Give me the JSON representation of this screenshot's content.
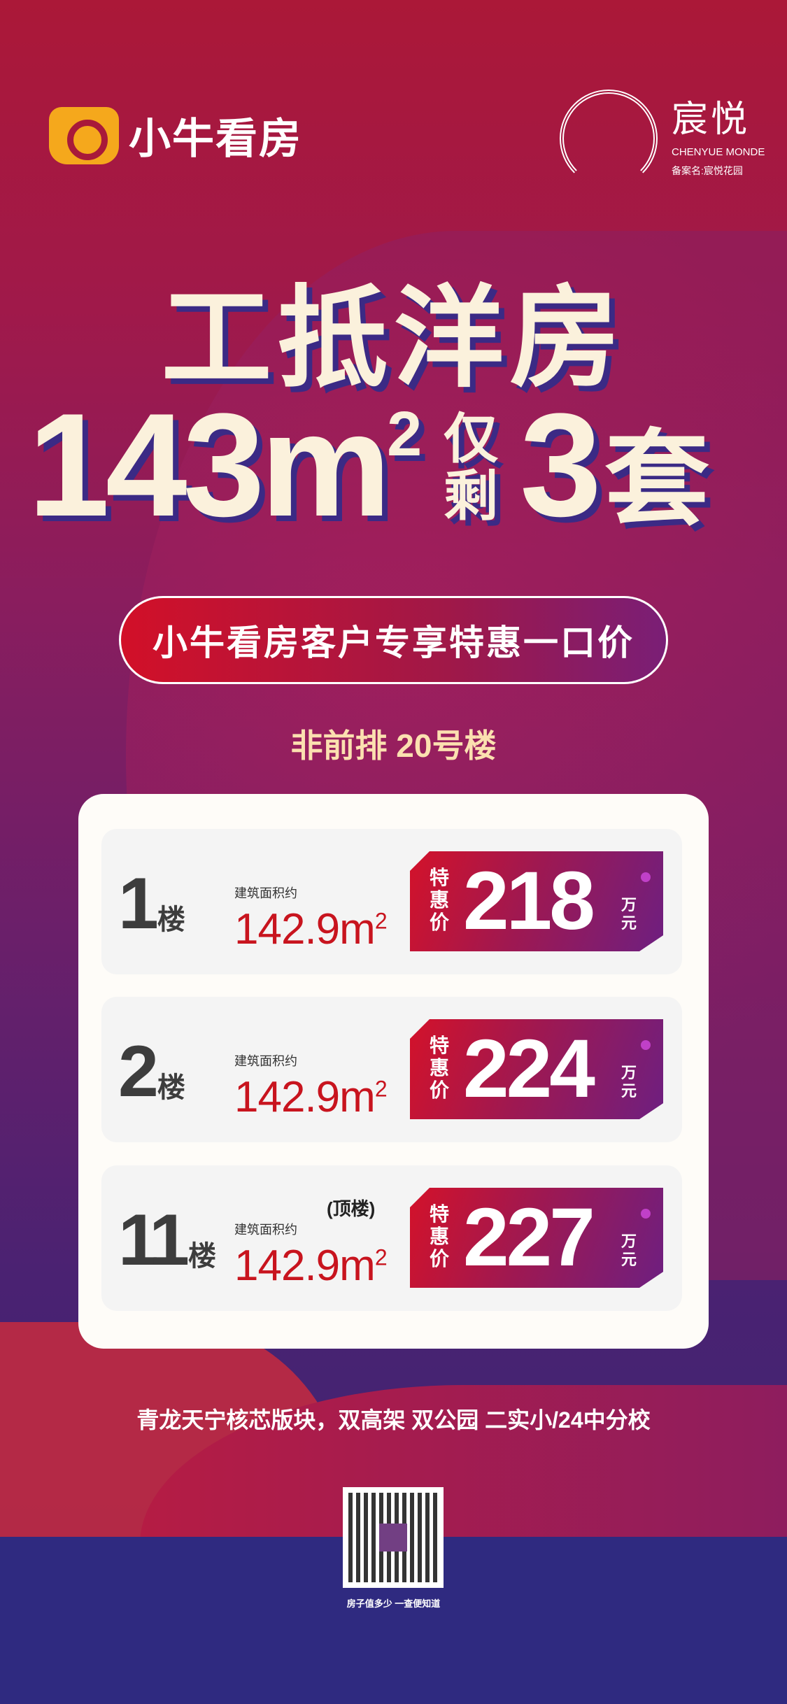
{
  "header": {
    "logo_text": "小牛看房",
    "brand_cn": "宸悦",
    "brand_en": "CHENYUE MONDE",
    "brand_reg": "备案名:宸悦花园"
  },
  "hero": {
    "title": "工抵洋房",
    "area": "143m",
    "area_sup": "2",
    "remaining_label": "仅剩",
    "count": "3",
    "unit": "套"
  },
  "pill": "小牛看房客户专享特惠一口价",
  "building": "非前排 20号楼",
  "units": [
    {
      "floor": "1",
      "floor_unit": "楼",
      "area_label": "建筑面积约",
      "area": "142.9m",
      "area_sup": "2",
      "note": "",
      "price_label": "特惠价",
      "price": "218",
      "price_unit": "万元"
    },
    {
      "floor": "2",
      "floor_unit": "楼",
      "area_label": "建筑面积约",
      "area": "142.9m",
      "area_sup": "2",
      "note": "",
      "price_label": "特惠价",
      "price": "224",
      "price_unit": "万元"
    },
    {
      "floor": "11",
      "floor_unit": "楼",
      "area_label": "建筑面积约",
      "area": "142.9m",
      "area_sup": "2",
      "note": "(顶楼)",
      "price_label": "特惠价",
      "price": "227",
      "price_unit": "万元"
    }
  ],
  "footer": "青龙天宁核芯版块，双高架 双公园 二实小/24中分校",
  "qr_caption": "房子值多少 一查便知道",
  "colors": {
    "accent": "#c8141e",
    "brand_yellow": "#f5a81c",
    "band": "#2f2a80"
  }
}
